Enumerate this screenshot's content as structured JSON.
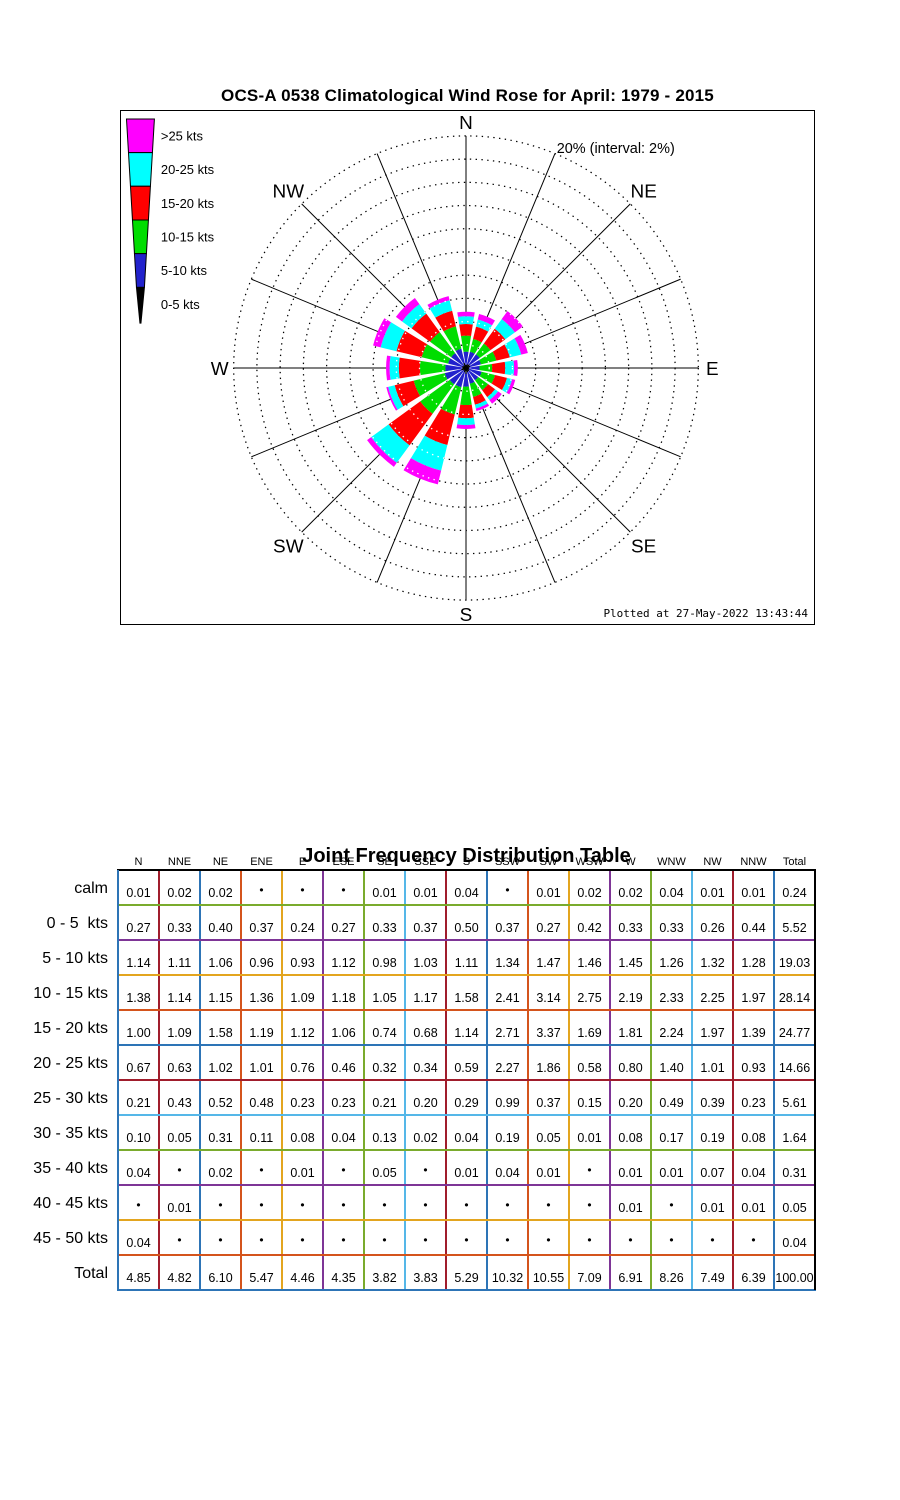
{
  "rose_panel": {
    "title": "OCS-A 0538 Climatological Wind Rose for April: 1979 - 2015",
    "scale_label": "20% (interval: 2%)",
    "timestamp": "Plotted at 27-May-2022 13:43:44",
    "compass": [
      "N",
      "NE",
      "E",
      "SE",
      "S",
      "SW",
      "W",
      "NW"
    ],
    "legend": [
      {
        "label": ">25 kts",
        "color": "#ff00ff"
      },
      {
        "label": "20-25 kts",
        "color": "#00ffff"
      },
      {
        "label": "15-20 kts",
        "color": "#ff0000"
      },
      {
        "label": "10-15 kts",
        "color": "#00dd00"
      },
      {
        "label": "5-10 kts",
        "color": "#2222cc"
      },
      {
        "label": "0-5 kts",
        "color": "#000000"
      }
    ]
  },
  "chart_data": {
    "type": "windrose",
    "title": "OCS-A 0538 Climatological Wind Rose for April: 1979 - 2015",
    "units": "percent frequency of observations",
    "ring_max_percent": 20,
    "ring_interval_percent": 2,
    "legend_position": "top-left",
    "grid": "dotted polar rings with 16 spokes",
    "directions": [
      "N",
      "NNE",
      "NE",
      "ENE",
      "E",
      "ESE",
      "SE",
      "SSE",
      "S",
      "SSW",
      "SW",
      "WSW",
      "W",
      "WNW",
      "NW",
      "NNW"
    ],
    "series": [
      {
        "name": "calm",
        "values": [
          "0.01",
          "0.02",
          "0.02",
          "•",
          "•",
          "•",
          "0.01",
          "0.01",
          "0.04",
          "•",
          "0.01",
          "0.02",
          "0.02",
          "0.04",
          "0.01",
          "0.01"
        ],
        "total": "0.24"
      },
      {
        "name": "0 - 5  kts",
        "values": [
          "0.27",
          "0.33",
          "0.40",
          "0.37",
          "0.24",
          "0.27",
          "0.33",
          "0.37",
          "0.50",
          "0.37",
          "0.27",
          "0.42",
          "0.33",
          "0.33",
          "0.26",
          "0.44"
        ],
        "total": "5.52"
      },
      {
        "name": "5 - 10 kts",
        "values": [
          "1.14",
          "1.11",
          "1.06",
          "0.96",
          "0.93",
          "1.12",
          "0.98",
          "1.03",
          "1.11",
          "1.34",
          "1.47",
          "1.46",
          "1.45",
          "1.26",
          "1.32",
          "1.28"
        ],
        "total": "19.03"
      },
      {
        "name": "10 - 15 kts",
        "values": [
          "1.38",
          "1.14",
          "1.15",
          "1.36",
          "1.09",
          "1.18",
          "1.05",
          "1.17",
          "1.58",
          "2.41",
          "3.14",
          "2.75",
          "2.19",
          "2.33",
          "2.25",
          "1.97"
        ],
        "total": "28.14"
      },
      {
        "name": "15 - 20 kts",
        "values": [
          "1.00",
          "1.09",
          "1.58",
          "1.19",
          "1.12",
          "1.06",
          "0.74",
          "0.68",
          "1.14",
          "2.71",
          "3.37",
          "1.69",
          "1.81",
          "2.24",
          "1.97",
          "1.39"
        ],
        "total": "24.77"
      },
      {
        "name": "20 - 25 kts",
        "values": [
          "0.67",
          "0.63",
          "1.02",
          "1.01",
          "0.76",
          "0.46",
          "0.32",
          "0.34",
          "0.59",
          "2.27",
          "1.86",
          "0.58",
          "0.80",
          "1.40",
          "1.01",
          "0.93"
        ],
        "total": "14.66"
      },
      {
        "name": "25 - 30 kts",
        "values": [
          "0.21",
          "0.43",
          "0.52",
          "0.48",
          "0.23",
          "0.23",
          "0.21",
          "0.20",
          "0.29",
          "0.99",
          "0.37",
          "0.15",
          "0.20",
          "0.49",
          "0.39",
          "0.23"
        ],
        "total": "5.61"
      },
      {
        "name": "30 - 35 kts",
        "values": [
          "0.10",
          "0.05",
          "0.31",
          "0.11",
          "0.08",
          "0.04",
          "0.13",
          "0.02",
          "0.04",
          "0.19",
          "0.05",
          "0.01",
          "0.08",
          "0.17",
          "0.19",
          "0.08"
        ],
        "total": "1.64"
      },
      {
        "name": "35 - 40 kts",
        "values": [
          "0.04",
          "•",
          "0.02",
          "•",
          "0.01",
          "•",
          "0.05",
          "•",
          "0.01",
          "0.04",
          "0.01",
          "•",
          "0.01",
          "0.01",
          "0.07",
          "0.04"
        ],
        "total": "0.31"
      },
      {
        "name": "40 - 45 kts",
        "values": [
          "•",
          "0.01",
          "•",
          "•",
          "•",
          "•",
          "•",
          "•",
          "•",
          "•",
          "•",
          "•",
          "0.01",
          "•",
          "0.01",
          "0.01"
        ],
        "total": "0.05"
      },
      {
        "name": "45 - 50 kts",
        "values": [
          "0.04",
          "•",
          "•",
          "•",
          "•",
          "•",
          "•",
          "•",
          "•",
          "•",
          "•",
          "•",
          "•",
          "•",
          "•",
          "•"
        ],
        "total": "0.04"
      }
    ],
    "direction_totals": [
      "4.85",
      "4.82",
      "6.10",
      "5.47",
      "4.46",
      "4.35",
      "3.82",
      "3.83",
      "5.29",
      "10.32",
      "10.55",
      "7.09",
      "6.91",
      "8.26",
      "7.49",
      "6.39"
    ],
    "grand_total": "100.00",
    "rose_stack": [
      {
        "bin": "0-5 kts",
        "series_index": 1,
        "color": "#000000"
      },
      {
        "bin": "5-10 kts",
        "series_index": 2,
        "color": "#2222cc"
      },
      {
        "bin": "10-15 kts",
        "series_index": 3,
        "color": "#00dd00"
      },
      {
        "bin": "15-20 kts",
        "series_index": 4,
        "color": "#ff0000"
      },
      {
        "bin": "20-25 kts",
        "series_index": 5,
        "color": "#00ffff"
      },
      {
        "bin": ">25 kts",
        "series_indices": [
          6,
          7,
          8,
          9,
          10
        ],
        "color": "#ff00ff"
      }
    ]
  },
  "freq_table": {
    "title": "Joint Frequency Distribution Table",
    "col_headers": [
      "N",
      "NNE",
      "NE",
      "ENE",
      "E",
      "ESE",
      "SE",
      "SSE",
      "S",
      "SSW",
      "SW",
      "WSW",
      "W",
      "WNW",
      "NW",
      "NNW",
      "Total"
    ],
    "total_row_label": "Total",
    "grid": {
      "frame": {
        "top": "#000000",
        "right": "#000000",
        "left": "#2d74b6",
        "bottom": "#2d74b6"
      },
      "thick_color": "#a01d2c",
      "col_line_colors": [
        "#a01d2c",
        "#2d74b6",
        "#d4541c",
        "#e3a51f",
        "#7e3596",
        "#7aab2d",
        "#55b7e8",
        "#a01d2c",
        "#2d74b6",
        "#d4541c",
        "#e3a51f",
        "#7e3596",
        "#7aab2d",
        "#55b7e8",
        "#a01d2c",
        "#2d74b6"
      ],
      "row_line_colors": [
        "#7aab2d",
        "#7e3596",
        "#e3a51f",
        "#d4541c",
        "#2d74b6",
        "#a01d2c",
        "#55b7e8",
        "#7aab2d",
        "#7e3596",
        "#e3a51f",
        "#d4541c"
      ]
    }
  }
}
